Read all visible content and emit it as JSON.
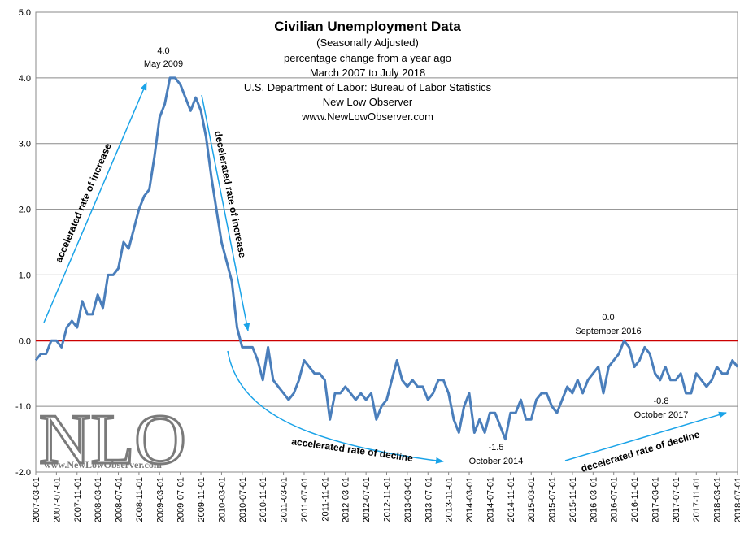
{
  "chart_data": {
    "type": "line",
    "title": "Civilian Unemployment Data",
    "subtitle_lines": [
      "(Seasonally Adjusted)",
      "percentage change from a year ago",
      "March 2007  to July 2018",
      "U.S. Department of Labor: Bureau of Labor Statistics",
      "New Low Observer",
      "www.NewLowObserver.com"
    ],
    "ylim": [
      -2.0,
      5.0
    ],
    "yticks": [
      "5.0",
      "4.0",
      "3.0",
      "2.0",
      "1.0",
      "0.0",
      "-1.0",
      "-2.0"
    ],
    "x_start": "2007-03",
    "x_tick_labels": [
      "2007-03-01",
      "2007-07-01",
      "2007-11-01",
      "2008-03-01",
      "2008-07-01",
      "2008-11-01",
      "2009-03-01",
      "2009-07-01",
      "2009-11-01",
      "2010-03-01",
      "2010-07-01",
      "2010-11-01",
      "2011-03-01",
      "2011-07-01",
      "2011-11-01",
      "2012-03-01",
      "2012-07-01",
      "2012-11-01",
      "2013-03-01",
      "2013-07-01",
      "2013-11-01",
      "2014-03-01",
      "2014-07-01",
      "2014-11-01",
      "2015-03-01",
      "2015-07-01",
      "2015-11-01",
      "2016-03-01",
      "2016-07-01",
      "2016-11-01",
      "2017-03-01",
      "2017-07-01",
      "2017-11-01",
      "2018-03-01",
      "2018-07-01"
    ],
    "series": [
      {
        "name": "Civilian Unemployment, % change from a year ago",
        "color": "#4a7ebb",
        "values": [
          -0.3,
          -0.2,
          -0.2,
          0.0,
          0.0,
          -0.1,
          0.2,
          0.3,
          0.2,
          0.6,
          0.4,
          0.4,
          0.7,
          0.5,
          1.0,
          1.0,
          1.1,
          1.5,
          1.4,
          1.7,
          2.0,
          2.2,
          2.3,
          2.8,
          3.4,
          3.6,
          4.0,
          4.0,
          3.9,
          3.7,
          3.5,
          3.7,
          3.5,
          3.1,
          2.5,
          2.0,
          1.5,
          1.2,
          0.9,
          0.2,
          -0.1,
          -0.1,
          -0.1,
          -0.3,
          -0.6,
          -0.1,
          -0.6,
          -0.7,
          -0.8,
          -0.9,
          -0.8,
          -0.6,
          -0.3,
          -0.4,
          -0.5,
          -0.5,
          -0.6,
          -1.2,
          -0.8,
          -0.8,
          -0.7,
          -0.8,
          -0.9,
          -0.8,
          -0.9,
          -0.8,
          -1.2,
          -1.0,
          -0.9,
          -0.6,
          -0.3,
          -0.6,
          -0.7,
          -0.6,
          -0.7,
          -0.7,
          -0.9,
          -0.8,
          -0.6,
          -0.6,
          -0.8,
          -1.2,
          -1.4,
          -1.0,
          -0.8,
          -1.4,
          -1.2,
          -1.4,
          -1.1,
          -1.1,
          -1.3,
          -1.5,
          -1.1,
          -1.1,
          -0.9,
          -1.2,
          -1.2,
          -0.9,
          -0.8,
          -0.8,
          -1.0,
          -1.1,
          -0.9,
          -0.7,
          -0.8,
          -0.6,
          -0.8,
          -0.6,
          -0.5,
          -0.4,
          -0.8,
          -0.4,
          -0.3,
          -0.2,
          0.0,
          -0.1,
          -0.4,
          -0.3,
          -0.1,
          -0.2,
          -0.5,
          -0.6,
          -0.4,
          -0.6,
          -0.6,
          -0.5,
          -0.8,
          -0.8,
          -0.5,
          -0.6,
          -0.7,
          -0.6,
          -0.4,
          -0.5,
          -0.5,
          -0.3,
          -0.4
        ]
      }
    ],
    "zero_line_color": "#cc0000",
    "annotations": {
      "peak_value": "4.0",
      "peak_date": "May 2009",
      "low_value": "-1.5",
      "low_date": "October 2014",
      "sep_value": "0.0",
      "sep_date": "September  2016",
      "oct17_value": "-0.8",
      "oct17_date": "October 2017",
      "accel_increase": "accelerated rate of increase",
      "decel_increase": "decelerated rate of increase",
      "accel_decline": "accelerated rate of decline",
      "decel_decline": "decelerated rate of decline"
    },
    "arrow_color": "#1aa3e8"
  },
  "logo": {
    "text": "NLO",
    "url_text": "www.NewLowObserver.com"
  }
}
